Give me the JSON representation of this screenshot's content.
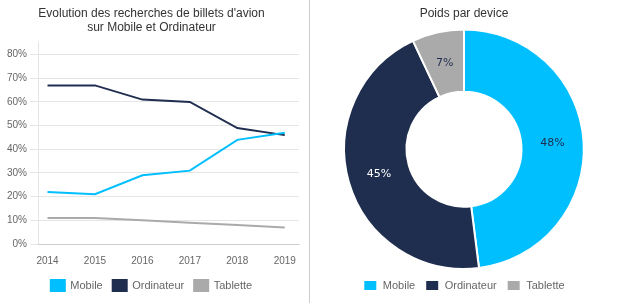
{
  "chart_data": [
    {
      "type": "line",
      "title": "Evolution des recherches de billets d'avion\nsur Mobile et Ordinateur",
      "x": [
        2014,
        2015,
        2016,
        2017,
        2018,
        2019
      ],
      "series": [
        {
          "name": "Mobile",
          "color": "#00BFFF",
          "values": [
            0.22,
            0.21,
            0.29,
            0.31,
            0.44,
            0.47
          ]
        },
        {
          "name": "Ordinateur",
          "color": "#1F2D4E",
          "values": [
            0.67,
            0.67,
            0.61,
            0.6,
            0.49,
            0.46
          ]
        },
        {
          "name": "Tablette",
          "color": "#AAAAAA",
          "values": [
            0.11,
            0.11,
            0.1,
            0.09,
            0.08,
            0.07
          ]
        }
      ],
      "xlim": [
        2013.8,
        2019.3
      ],
      "xticks": [
        2014,
        2015,
        2016,
        2017,
        2018,
        2019
      ],
      "ylim": [
        0,
        0.85
      ],
      "yticks": [
        {
          "value": 0,
          "label": "0%"
        },
        {
          "value": 0.1,
          "label": "10%"
        },
        {
          "value": 0.2,
          "label": "20%"
        },
        {
          "value": 0.3,
          "label": "30%"
        },
        {
          "value": 0.4,
          "label": "40%"
        },
        {
          "value": 0.5,
          "label": "50%"
        },
        {
          "value": 0.6,
          "label": "60%"
        },
        {
          "value": 0.7,
          "label": "70%"
        },
        {
          "value": 0.8,
          "label": "80%"
        }
      ],
      "grid": true,
      "legend": "bottom"
    },
    {
      "type": "doughnut",
      "title": "Poids par device",
      "categories": [
        "Mobile",
        "Ordinateur",
        "Tablette"
      ],
      "values": [
        48,
        45,
        7
      ],
      "value_labels": [
        "48%",
        "45%",
        "7%"
      ],
      "colors": [
        "#00BFFF",
        "#1F2D4E",
        "#AAAAAA"
      ],
      "data_labels": true,
      "legend": "bottom"
    }
  ]
}
